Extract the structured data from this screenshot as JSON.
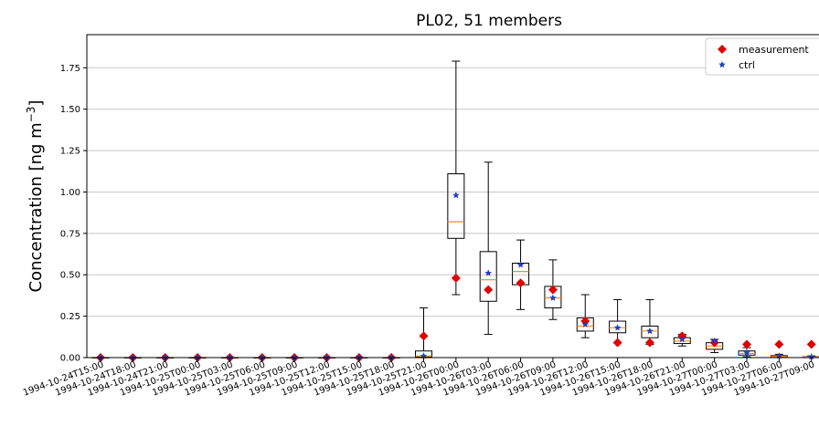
{
  "chart_data": {
    "type": "box",
    "title": "PL02, 51 members",
    "ylabel": "Concentration [ng m",
    "ylabel_exponent": "−3",
    "ylabel_close": "]",
    "ylim": [
      0,
      1.95
    ],
    "yticks": [
      "0.00",
      "0.25",
      "0.50",
      "0.75",
      "1.00",
      "1.25",
      "1.50",
      "1.75"
    ],
    "ytick_values": [
      0,
      0.25,
      0.5,
      0.75,
      1.0,
      1.25,
      1.5,
      1.75
    ],
    "grid": "horizontal",
    "legend_position": "top-right",
    "legend": [
      {
        "label": "measurement",
        "color": "#e00000",
        "marker": "diamond"
      },
      {
        "label": "ctrl",
        "color": "#1f3fbf",
        "marker": "star"
      }
    ],
    "categories": [
      "1994-10-24T15:00",
      "1994-10-24T18:00",
      "1994-10-24T21:00",
      "1994-10-25T00:00",
      "1994-10-25T03:00",
      "1994-10-25T06:00",
      "1994-10-25T09:00",
      "1994-10-25T12:00",
      "1994-10-25T15:00",
      "1994-10-25T18:00",
      "1994-10-25T21:00",
      "1994-10-26T00:00",
      "1994-10-26T03:00",
      "1994-10-26T06:00",
      "1994-10-26T09:00",
      "1994-10-26T12:00",
      "1994-10-26T15:00",
      "1994-10-26T18:00",
      "1994-10-26T21:00",
      "1994-10-27T00:00",
      "1994-10-27T03:00",
      "1994-10-27T06:00",
      "1994-10-27T09:00"
    ],
    "boxes": [
      {
        "min": 0,
        "q1": 0,
        "median": 0,
        "q3": 0,
        "max": 0
      },
      {
        "min": 0,
        "q1": 0,
        "median": 0,
        "q3": 0,
        "max": 0
      },
      {
        "min": 0,
        "q1": 0,
        "median": 0,
        "q3": 0,
        "max": 0
      },
      {
        "min": 0,
        "q1": 0,
        "median": 0,
        "q3": 0,
        "max": 0
      },
      {
        "min": 0,
        "q1": 0,
        "median": 0,
        "q3": 0,
        "max": 0
      },
      {
        "min": 0,
        "q1": 0,
        "median": 0,
        "q3": 0,
        "max": 0
      },
      {
        "min": 0,
        "q1": 0,
        "median": 0,
        "q3": 0,
        "max": 0
      },
      {
        "min": 0,
        "q1": 0,
        "median": 0,
        "q3": 0,
        "max": 0
      },
      {
        "min": 0,
        "q1": 0,
        "median": 0,
        "q3": 0,
        "max": 0
      },
      {
        "min": 0,
        "q1": 0,
        "median": 0,
        "q3": 0,
        "max": 0
      },
      {
        "min": 0,
        "q1": 0.003,
        "median": 0.01,
        "q3": 0.04,
        "max": 0.3
      },
      {
        "min": 0.38,
        "q1": 0.72,
        "median": 0.82,
        "q3": 1.11,
        "max": 1.79
      },
      {
        "min": 0.14,
        "q1": 0.34,
        "median": 0.47,
        "q3": 0.64,
        "max": 1.18
      },
      {
        "min": 0.29,
        "q1": 0.44,
        "median": 0.52,
        "q3": 0.57,
        "max": 0.71
      },
      {
        "min": 0.23,
        "q1": 0.3,
        "median": 0.36,
        "q3": 0.43,
        "max": 0.59
      },
      {
        "min": 0.12,
        "q1": 0.16,
        "median": 0.19,
        "q3": 0.24,
        "max": 0.38
      },
      {
        "min": 0.09,
        "q1": 0.15,
        "median": 0.18,
        "q3": 0.22,
        "max": 0.35
      },
      {
        "min": 0.08,
        "q1": 0.12,
        "median": 0.16,
        "q3": 0.19,
        "max": 0.35
      },
      {
        "min": 0.07,
        "q1": 0.085,
        "median": 0.1,
        "q3": 0.12,
        "max": 0.14
      },
      {
        "min": 0.03,
        "q1": 0.05,
        "median": 0.07,
        "q3": 0.09,
        "max": 0.11
      },
      {
        "min": 0.005,
        "q1": 0.015,
        "median": 0.025,
        "q3": 0.04,
        "max": 0.06
      },
      {
        "min": 0,
        "q1": 0.003,
        "median": 0.007,
        "q3": 0.012,
        "max": 0.02
      },
      {
        "min": 0,
        "q1": 0.001,
        "median": 0.003,
        "q3": 0.005,
        "max": 0.01
      }
    ],
    "series": [
      {
        "name": "measurement",
        "values": [
          0,
          0,
          0,
          0,
          0,
          0,
          0,
          0,
          0,
          0,
          0.13,
          0.48,
          0.41,
          0.45,
          0.41,
          0.22,
          0.09,
          0.09,
          0.13,
          0.09,
          0.08,
          0.08,
          0.08
        ]
      },
      {
        "name": "ctrl",
        "values": [
          0,
          0,
          0,
          0,
          0,
          0,
          0,
          0,
          0,
          0,
          0.01,
          0.98,
          0.51,
          0.56,
          0.36,
          0.2,
          0.18,
          0.16,
          0.11,
          0.1,
          0.03,
          0.01,
          0.005
        ]
      }
    ]
  }
}
